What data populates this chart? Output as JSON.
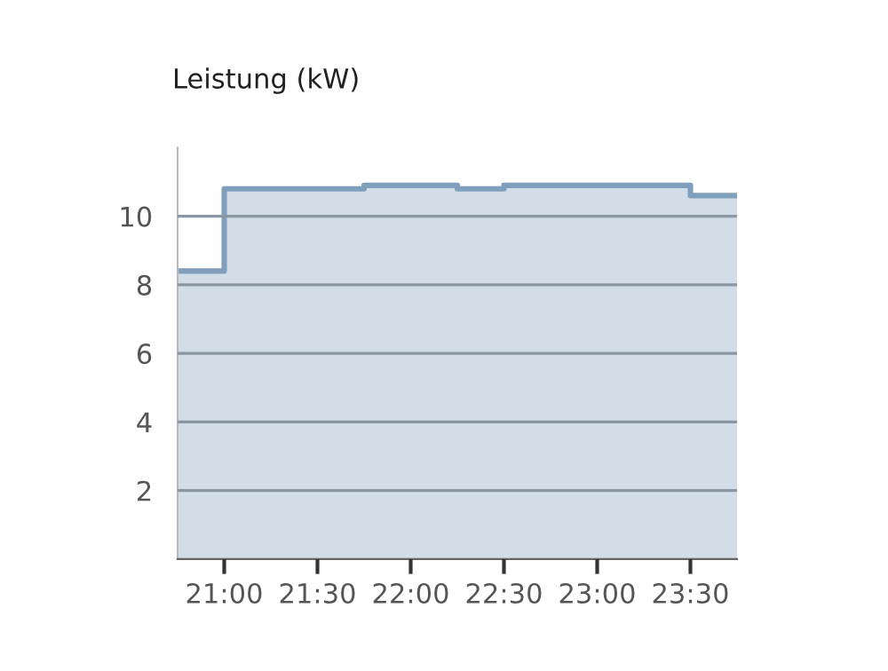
{
  "chart_data": {
    "type": "step",
    "title": "Leistung (kW)",
    "x": [
      20.75,
      21.0,
      21.75,
      22.25,
      22.5,
      23.5,
      23.75
    ],
    "series": [
      {
        "color": "#7f9fbd",
        "values": [
          8.4,
          10.8,
          10.9,
          10.8,
          10.9,
          10.6,
          10.6
        ]
      }
    ],
    "xlim": [
      20.75,
      23.75
    ],
    "xticks": [
      {
        "value": 21.0,
        "label": "21:00"
      },
      {
        "value": 21.5,
        "label": "21:30"
      },
      {
        "value": 22.0,
        "label": "22:00"
      },
      {
        "value": 22.5,
        "label": "22:30"
      },
      {
        "value": 23.0,
        "label": "23:00"
      },
      {
        "value": 23.5,
        "label": "23:30"
      }
    ],
    "ylim": [
      0,
      12
    ],
    "yticks": [
      2,
      4,
      6,
      8,
      10
    ],
    "grid": "y"
  }
}
